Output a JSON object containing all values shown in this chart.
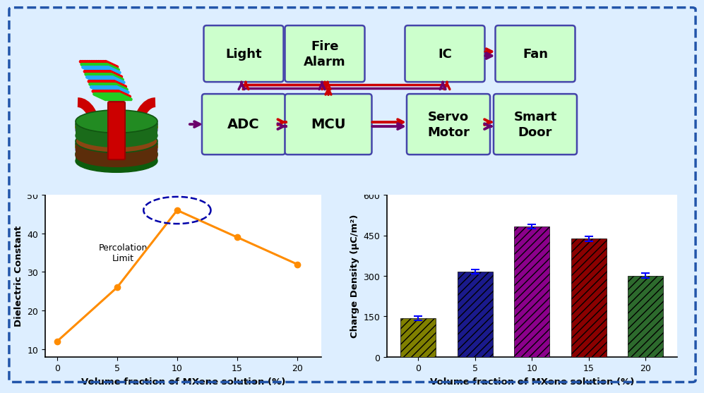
{
  "dielectric_x": [
    0,
    5,
    10,
    15,
    20
  ],
  "dielectric_y": [
    12,
    26,
    46,
    39,
    32
  ],
  "charge_x": [
    0,
    5,
    10,
    15,
    20
  ],
  "charge_y": [
    142,
    315,
    483,
    437,
    301
  ],
  "charge_err": [
    8,
    8,
    8,
    8,
    8
  ],
  "bar_colors": [
    "#808000",
    "#1a1a8c",
    "#8B008B",
    "#8B0000",
    "#2d6a2d"
  ],
  "line_color": "#FF8C00",
  "marker_color": "#FF8C00",
  "error_bar_color": "#0000FF",
  "percolation_circle_color": "#0000AA",
  "box_fill_color": "#ccffcc",
  "box_edge_color": "#4444aa",
  "arrow_purple": "#6B006B",
  "arrow_red": "#cc0000",
  "bg_color": "#ddeeff",
  "plot_bg": "#ffffff",
  "border_color": "#2255aa",
  "xlabel": "Volume fraction of MXene solution (%)",
  "ylabel_left": "Dielectric Constant",
  "ylabel_right": "Charge Density (μC/m²)",
  "dielectric_yticks": [
    10,
    20,
    30,
    40,
    50
  ],
  "charge_yticks": [
    0,
    150,
    300,
    450,
    600
  ],
  "charge_ylim": [
    0,
    600
  ],
  "dielectric_ylim": [
    8,
    50
  ]
}
